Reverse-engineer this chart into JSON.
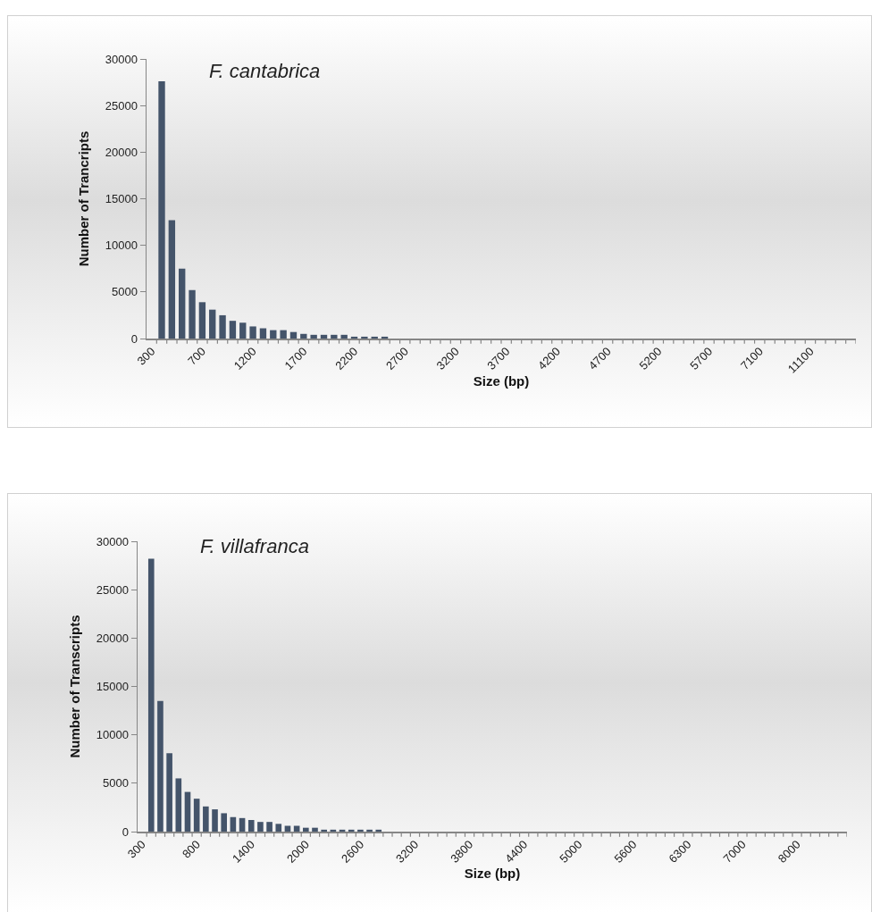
{
  "chart_data": [
    {
      "type": "bar",
      "title": "F. cantabrica",
      "xlabel": "Size (bp)",
      "ylabel": "Number of Trancripts",
      "color": "#44546a",
      "categories": [
        "300",
        null,
        null,
        null,
        null,
        "700",
        null,
        null,
        null,
        null,
        "1200",
        null,
        null,
        null,
        null,
        "1700",
        null,
        null,
        null,
        null,
        "2200",
        null,
        null,
        null,
        null,
        "2700",
        null,
        null,
        null,
        null,
        "3200",
        null,
        null,
        null,
        null,
        "3700",
        null,
        null,
        null,
        null,
        "4200",
        null,
        null,
        null,
        null,
        "4700",
        null,
        null,
        null,
        null,
        "5200",
        null,
        null,
        null,
        null,
        "5700",
        null,
        null,
        null,
        null,
        "7100",
        null,
        null,
        null,
        null,
        "11100",
        null,
        null,
        null,
        null
      ],
      "values": [
        0,
        27600,
        12700,
        7500,
        5200,
        3900,
        3100,
        2500,
        1900,
        1700,
        1300,
        1100,
        900,
        900,
        700,
        500,
        400,
        400,
        400,
        400,
        200,
        200,
        200,
        200,
        0,
        0,
        0,
        0,
        0,
        0,
        0,
        0,
        0,
        0,
        0,
        0,
        0,
        0,
        0,
        0,
        0,
        0,
        0,
        0,
        0,
        0,
        0,
        0,
        0,
        0,
        0,
        0,
        0,
        0,
        0,
        0,
        0,
        0,
        0,
        0,
        0,
        0,
        0,
        0,
        0,
        0,
        0,
        0,
        0,
        0
      ],
      "ylim": [
        0,
        30000
      ],
      "yticks": [
        0,
        5000,
        10000,
        15000,
        20000,
        25000,
        30000
      ],
      "grid": false
    },
    {
      "type": "bar",
      "title": "F. villafranca",
      "xlabel": "Size (bp)",
      "ylabel": "Number of Transcripts",
      "color": "#44546a",
      "categories": [
        "300",
        null,
        null,
        null,
        null,
        null,
        "800",
        null,
        null,
        null,
        null,
        null,
        "1400",
        null,
        null,
        null,
        null,
        null,
        "2000",
        null,
        null,
        null,
        null,
        null,
        "2600",
        null,
        null,
        null,
        null,
        null,
        "3200",
        null,
        null,
        null,
        null,
        null,
        "3800",
        null,
        null,
        null,
        null,
        null,
        "4400",
        null,
        null,
        null,
        null,
        null,
        "5000",
        null,
        null,
        null,
        null,
        null,
        "5600",
        null,
        null,
        null,
        null,
        null,
        "6300",
        null,
        null,
        null,
        null,
        null,
        "7000",
        null,
        null,
        null,
        null,
        null,
        "8000",
        null,
        null,
        null,
        null,
        null
      ],
      "values": [
        0,
        28200,
        13500,
        8100,
        5500,
        4100,
        3400,
        2600,
        2300,
        1900,
        1500,
        1400,
        1200,
        1000,
        1000,
        800,
        600,
        600,
        400,
        400,
        200,
        200,
        200,
        200,
        200,
        200,
        200,
        0,
        0,
        0,
        0,
        0,
        0,
        0,
        0,
        0,
        0,
        0,
        0,
        0,
        0,
        0,
        0,
        0,
        0,
        0,
        0,
        0,
        0,
        0,
        0,
        0,
        0,
        0,
        0,
        0,
        0,
        0,
        0,
        0,
        0,
        0,
        0,
        0,
        0,
        0,
        0,
        0,
        0,
        0,
        0,
        0,
        0,
        0,
        0,
        0,
        0,
        0
      ],
      "ylim": [
        0,
        30000
      ],
      "yticks": [
        0,
        5000,
        10000,
        15000,
        20000,
        25000,
        30000
      ],
      "grid": false
    }
  ]
}
